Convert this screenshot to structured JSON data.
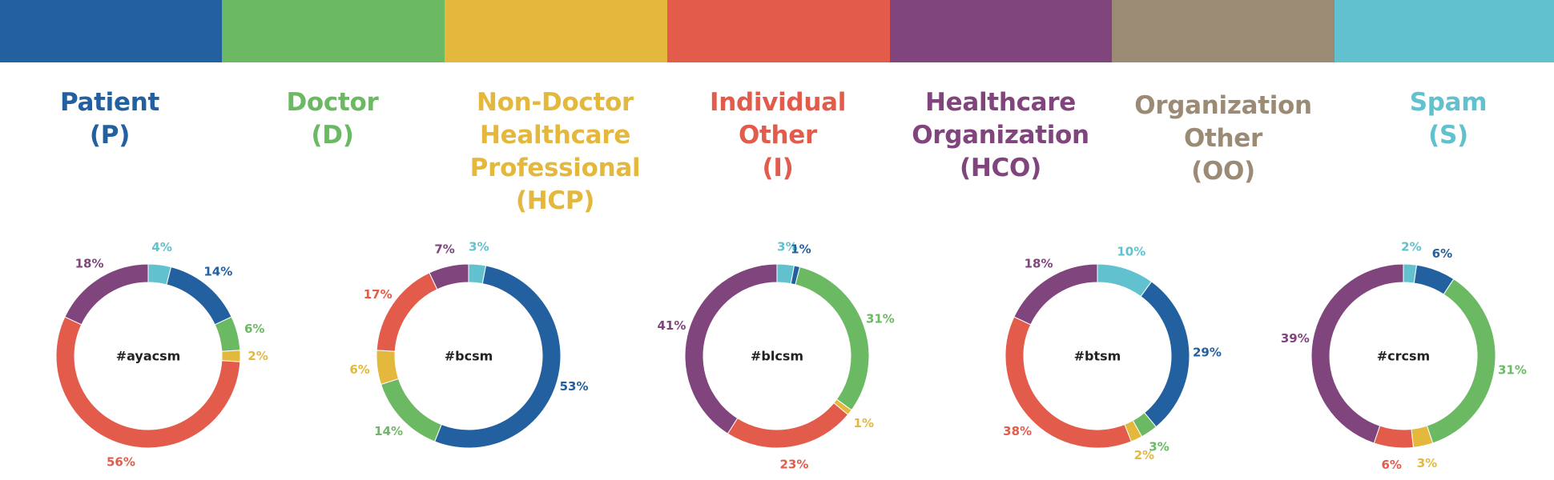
{
  "colors": {
    "patient": "#2260a0",
    "doctor": "#6cb964",
    "hcp": "#e3b83d",
    "individual_other": "#e35c4b",
    "hco": "#80457c",
    "organization_other": "#9c8b74",
    "spam": "#61c1cf"
  },
  "categories": [
    {
      "key": "patient",
      "label": "Patient\n(P)"
    },
    {
      "key": "doctor",
      "label": "Doctor\n(D)"
    },
    {
      "key": "hcp",
      "label": "Non-Doctor\nHealthcare\nProfessional\n(HCP)"
    },
    {
      "key": "individual_other",
      "label": "Individual\nOther\n(I)"
    },
    {
      "key": "hco",
      "label": "Healthcare\nOrganization\n(HCO)"
    },
    {
      "key": "organization_other",
      "label": "Organization\nOther\n(OO)"
    },
    {
      "key": "spam",
      "label": "Spam\n(S)"
    }
  ],
  "chart_data": [
    {
      "type": "pie",
      "title": "#ayacsm",
      "slices": [
        {
          "key": "spam",
          "value": 4,
          "label": "4%"
        },
        {
          "key": "patient",
          "value": 14,
          "label": "14%"
        },
        {
          "key": "doctor",
          "value": 6,
          "label": "6%"
        },
        {
          "key": "hcp",
          "value": 2,
          "label": "2%"
        },
        {
          "key": "individual_other",
          "value": 56,
          "label": "56%"
        },
        {
          "key": "hco",
          "value": 18,
          "label": "18%"
        }
      ]
    },
    {
      "type": "pie",
      "title": "#bcsm",
      "slices": [
        {
          "key": "spam",
          "value": 3,
          "label": "3%"
        },
        {
          "key": "patient",
          "value": 53,
          "label": "53%"
        },
        {
          "key": "doctor",
          "value": 14,
          "label": "14%"
        },
        {
          "key": "hcp",
          "value": 6,
          "label": "6%"
        },
        {
          "key": "individual_other",
          "value": 17,
          "label": "17%"
        },
        {
          "key": "hco",
          "value": 7,
          "label": "7%"
        }
      ]
    },
    {
      "type": "pie",
      "title": "#blcsm",
      "slices": [
        {
          "key": "spam",
          "value": 3,
          "label": "3%"
        },
        {
          "key": "patient",
          "value": 1,
          "label": "1%"
        },
        {
          "key": "doctor",
          "value": 31,
          "label": "31%"
        },
        {
          "key": "hcp",
          "value": 1,
          "label": "1%"
        },
        {
          "key": "individual_other",
          "value": 23,
          "label": "23%"
        },
        {
          "key": "hco",
          "value": 41,
          "label": "41%"
        }
      ]
    },
    {
      "type": "pie",
      "title": "#btsm",
      "slices": [
        {
          "key": "spam",
          "value": 10,
          "label": "10%"
        },
        {
          "key": "patient",
          "value": 29,
          "label": "29%"
        },
        {
          "key": "doctor",
          "value": 3,
          "label": "3%"
        },
        {
          "key": "hcp",
          "value": 2,
          "label": "2%"
        },
        {
          "key": "individual_other",
          "value": 38,
          "label": "38%"
        },
        {
          "key": "hco",
          "value": 18,
          "label": "18%"
        }
      ]
    },
    {
      "type": "pie",
      "title": "#crcsm",
      "slices": [
        {
          "key": "spam",
          "value": 2,
          "label": "2%"
        },
        {
          "key": "patient",
          "value": 6,
          "label": "6%"
        },
        {
          "key": "doctor",
          "value": 31,
          "label": "31%"
        },
        {
          "key": "hcp",
          "value": 3,
          "label": "3%"
        },
        {
          "key": "individual_other",
          "value": 6,
          "label": "6%"
        },
        {
          "key": "hco",
          "value": 39,
          "label": "39%"
        }
      ]
    }
  ]
}
